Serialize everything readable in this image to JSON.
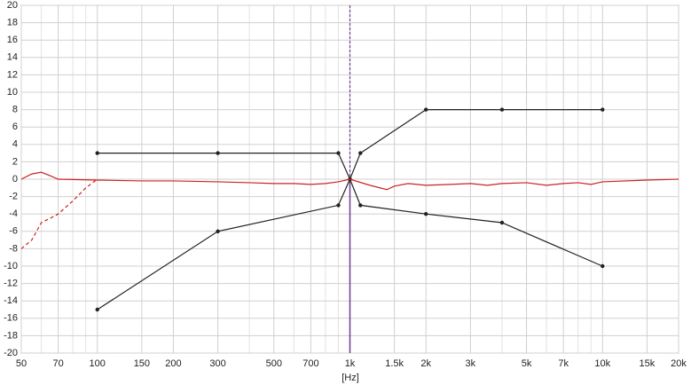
{
  "chart_data": {
    "type": "line",
    "xlabel": "[Hz]",
    "xscale": "log",
    "grid": true,
    "xlim": [
      50,
      20000
    ],
    "ylim": [
      -20,
      20
    ],
    "xticks": [
      50,
      70,
      100,
      150,
      200,
      300,
      500,
      700,
      {
        "value": 1000,
        "label": "1k"
      },
      {
        "value": 1500,
        "label": "1.5k"
      },
      {
        "value": 2000,
        "label": "2k"
      },
      {
        "value": 3000,
        "label": "3k"
      },
      {
        "value": 5000,
        "label": "5k"
      },
      {
        "value": 7000,
        "label": "7k"
      },
      {
        "value": 10000,
        "label": "10k"
      },
      {
        "value": 15000,
        "label": "15k"
      },
      {
        "value": 20000,
        "label": "20k"
      }
    ],
    "xminor": [
      60,
      80,
      90,
      400,
      600,
      800,
      900,
      4000,
      6000,
      8000,
      9000
    ],
    "yticks": [
      -20,
      -18,
      -16,
      -14,
      -12,
      -10,
      -8,
      -6,
      -4,
      -2,
      0,
      2,
      4,
      6,
      8,
      10,
      12,
      14,
      16,
      18,
      20
    ],
    "cursor": 1000,
    "cursor_color": "#6a3d8f",
    "series": [
      {
        "color": "#222222",
        "markers": true,
        "x": [
          100,
          300,
          900,
          1000,
          1100,
          2000,
          4000,
          10000
        ],
        "values": [
          3,
          3,
          3,
          0,
          3,
          8,
          8,
          8
        ]
      },
      {
        "color": "#222222",
        "markers": true,
        "x": [
          100,
          300,
          900,
          1000,
          1100,
          2000,
          4000,
          10000
        ],
        "values": [
          -15,
          -6,
          -3,
          0,
          -3,
          -4,
          -5,
          -10
        ]
      },
      {
        "color": "#cc2222",
        "markers": false,
        "x": [
          50,
          55,
          60,
          65,
          70,
          100,
          150,
          200,
          300,
          400,
          500,
          600,
          700,
          800,
          900,
          1000,
          1200,
          1400,
          1500,
          1700,
          2000,
          2500,
          3000,
          3500,
          4000,
          5000,
          6000,
          7000,
          8000,
          9000,
          10000,
          15000,
          20000
        ],
        "values": [
          0,
          0.6,
          0.8,
          0.4,
          0,
          -0.1,
          -0.2,
          -0.2,
          -0.3,
          -0.4,
          -0.5,
          -0.5,
          -0.6,
          -0.5,
          -0.3,
          0,
          -0.7,
          -1.2,
          -0.8,
          -0.5,
          -0.7,
          -0.6,
          -0.5,
          -0.7,
          -0.5,
          -0.4,
          -0.7,
          -0.5,
          -0.4,
          -0.6,
          -0.3,
          -0.1,
          0
        ]
      },
      {
        "color": "#cc2222",
        "markers": false,
        "dashed": true,
        "x": [
          50,
          55,
          60,
          65,
          70,
          80,
          90,
          100
        ],
        "values": [
          -8,
          -7,
          -5,
          -4.5,
          -4,
          -2.5,
          -1,
          0
        ]
      }
    ]
  }
}
